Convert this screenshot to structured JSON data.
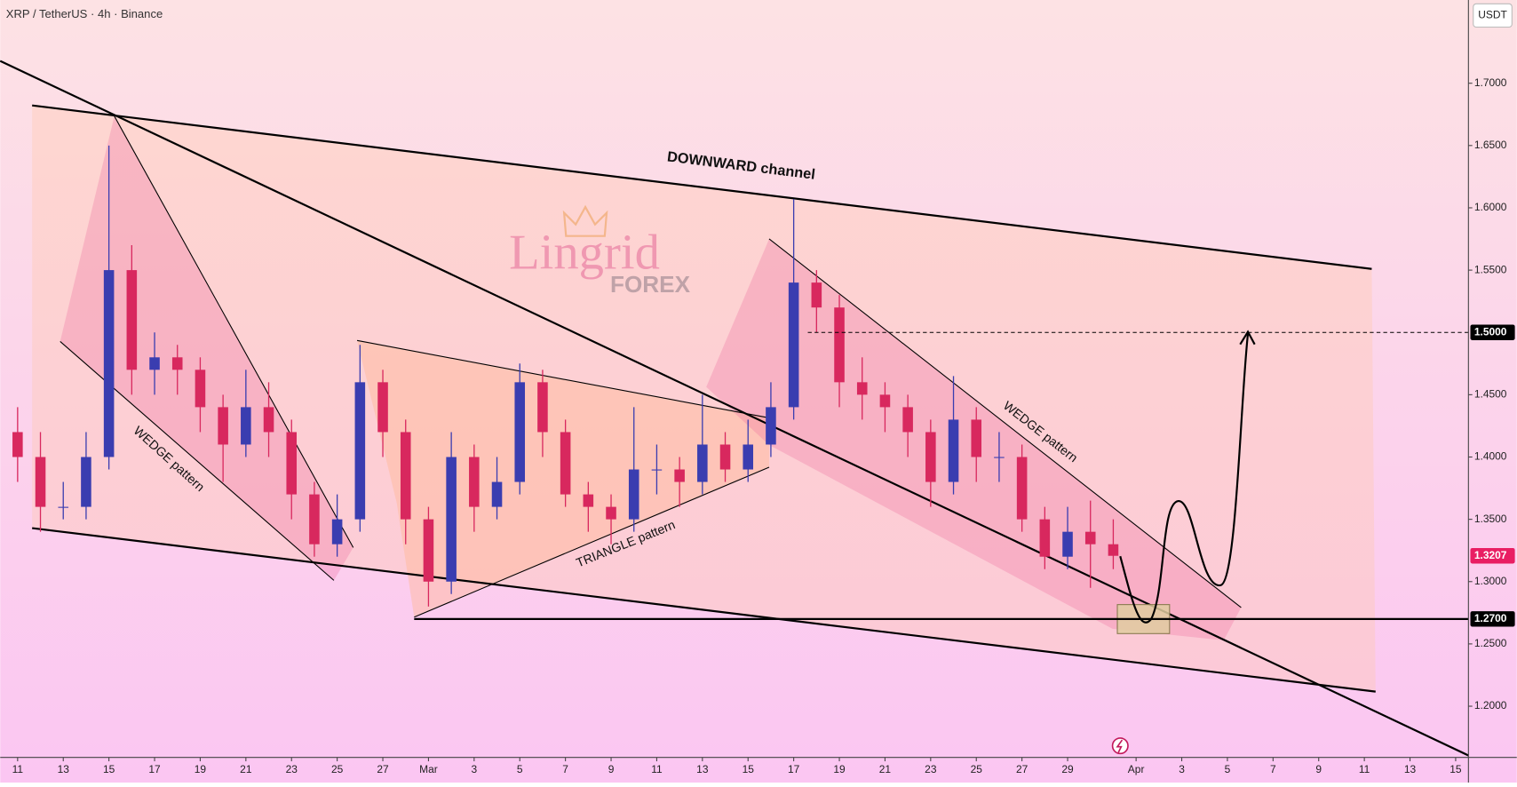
{
  "chart_data": {
    "type": "candlestick",
    "title": "XRP / TetherUS · 4h · Binance",
    "currency": "USDT",
    "watermark": {
      "brand": "Lingrid",
      "sub": "FOREX"
    },
    "annotations": [
      "DOWNWARD channel",
      "WEDGE pattern",
      "TRIANGLE pattern",
      "WEDGE pattern"
    ],
    "up_color": "#3a3db0",
    "down_color": "#d8285e",
    "x": [
      0,
      1,
      2,
      3,
      4,
      5,
      6,
      7,
      8,
      9,
      10,
      11,
      12,
      13,
      14,
      15,
      16,
      17,
      18,
      19,
      20,
      21,
      22,
      23,
      24,
      25,
      26,
      27,
      28,
      29,
      30,
      31,
      32,
      33,
      34,
      35,
      36,
      37,
      38,
      39,
      40,
      41,
      42,
      43,
      44,
      45,
      46,
      47,
      48
    ],
    "open": [
      1.42,
      1.4,
      1.36,
      1.36,
      1.4,
      1.55,
      1.47,
      1.48,
      1.47,
      1.44,
      1.41,
      1.44,
      1.42,
      1.37,
      1.33,
      1.35,
      1.46,
      1.42,
      1.35,
      1.3,
      1.4,
      1.36,
      1.38,
      1.46,
      1.42,
      1.37,
      1.36,
      1.35,
      1.39,
      1.39,
      1.38,
      1.41,
      1.39,
      1.41,
      1.44,
      1.54,
      1.52,
      1.46,
      1.45,
      1.44,
      1.42,
      1.38,
      1.43,
      1.4,
      1.4,
      1.35,
      1.32,
      1.34,
      1.33
    ],
    "high": [
      1.44,
      1.42,
      1.38,
      1.42,
      1.65,
      1.57,
      1.5,
      1.49,
      1.48,
      1.45,
      1.47,
      1.46,
      1.43,
      1.38,
      1.37,
      1.49,
      1.47,
      1.43,
      1.36,
      1.42,
      1.41,
      1.4,
      1.475,
      1.47,
      1.43,
      1.38,
      1.37,
      1.44,
      1.41,
      1.4,
      1.45,
      1.42,
      1.43,
      1.46,
      1.607,
      1.55,
      1.53,
      1.48,
      1.46,
      1.45,
      1.43,
      1.465,
      1.44,
      1.42,
      1.41,
      1.36,
      1.36,
      1.365,
      1.35
    ],
    "low": [
      1.38,
      1.34,
      1.35,
      1.35,
      1.39,
      1.45,
      1.45,
      1.45,
      1.42,
      1.38,
      1.4,
      1.4,
      1.35,
      1.32,
      1.32,
      1.34,
      1.4,
      1.33,
      1.28,
      1.29,
      1.34,
      1.35,
      1.37,
      1.4,
      1.36,
      1.34,
      1.33,
      1.34,
      1.37,
      1.36,
      1.37,
      1.38,
      1.38,
      1.4,
      1.43,
      1.5,
      1.44,
      1.43,
      1.42,
      1.4,
      1.36,
      1.37,
      1.38,
      1.38,
      1.34,
      1.31,
      1.31,
      1.295,
      1.31
    ],
    "close": [
      1.4,
      1.36,
      1.36,
      1.4,
      1.55,
      1.47,
      1.48,
      1.47,
      1.44,
      1.41,
      1.44,
      1.42,
      1.37,
      1.33,
      1.35,
      1.46,
      1.42,
      1.35,
      1.3,
      1.4,
      1.36,
      1.38,
      1.46,
      1.42,
      1.37,
      1.36,
      1.35,
      1.39,
      1.39,
      1.38,
      1.41,
      1.39,
      1.41,
      1.44,
      1.54,
      1.52,
      1.46,
      1.45,
      1.44,
      1.42,
      1.38,
      1.43,
      1.4,
      1.4,
      1.35,
      1.32,
      1.34,
      1.33,
      1.3207
    ],
    "xlim": [
      -0.763,
      63.56
    ],
    "xticks": [
      {
        "value": 0,
        "label": "11"
      },
      {
        "value": 2,
        "label": "13"
      },
      {
        "value": 4,
        "label": "15"
      },
      {
        "value": 6,
        "label": "17"
      },
      {
        "value": 8,
        "label": "19"
      },
      {
        "value": 10,
        "label": "21"
      },
      {
        "value": 12,
        "label": "23"
      },
      {
        "value": 14,
        "label": "25"
      },
      {
        "value": 16,
        "label": "27"
      },
      {
        "value": 18,
        "label": "Mar"
      },
      {
        "value": 20,
        "label": "3"
      },
      {
        "value": 22,
        "label": "5"
      },
      {
        "value": 24,
        "label": "7"
      },
      {
        "value": 26,
        "label": "9"
      },
      {
        "value": 28,
        "label": "11"
      },
      {
        "value": 30,
        "label": "13"
      },
      {
        "value": 32,
        "label": "15"
      },
      {
        "value": 34,
        "label": "17"
      },
      {
        "value": 36,
        "label": "19"
      },
      {
        "value": 38,
        "label": "21"
      },
      {
        "value": 40,
        "label": "23"
      },
      {
        "value": 42,
        "label": "25"
      },
      {
        "value": 44,
        "label": "27"
      },
      {
        "value": 46,
        "label": "29"
      },
      {
        "value": 49,
        "label": "Apr"
      },
      {
        "value": 51,
        "label": "3"
      },
      {
        "value": 53,
        "label": "5"
      },
      {
        "value": 55,
        "label": "7"
      },
      {
        "value": 57,
        "label": "9"
      },
      {
        "value": 59,
        "label": "11"
      },
      {
        "value": 61,
        "label": "13"
      },
      {
        "value": 63,
        "label": "15"
      }
    ],
    "ylim": [
      1.1589,
      1.7668
    ],
    "yticks": [
      {
        "value": 1.2,
        "label": "1.2000"
      },
      {
        "value": 1.25,
        "label": "1.2500"
      },
      {
        "value": 1.3,
        "label": "1.3000"
      },
      {
        "value": 1.35,
        "label": "1.3500"
      },
      {
        "value": 1.4,
        "label": "1.4000"
      },
      {
        "value": 1.45,
        "label": "1.4500"
      },
      {
        "value": 1.55,
        "label": "1.5500"
      },
      {
        "value": 1.6,
        "label": "1.6000"
      },
      {
        "value": 1.65,
        "label": "1.6500"
      },
      {
        "value": 1.7,
        "label": "1.7000"
      }
    ],
    "price_markers": [
      {
        "value": 1.5,
        "label": "1.5000",
        "color": "#000000",
        "line": "dashed"
      },
      {
        "value": 1.27,
        "label": "1.2700",
        "color": "#000000",
        "line": "solid"
      },
      {
        "value": 1.3207,
        "label": "1.3207",
        "color": "#e91e63",
        "line": "none"
      }
    ]
  }
}
